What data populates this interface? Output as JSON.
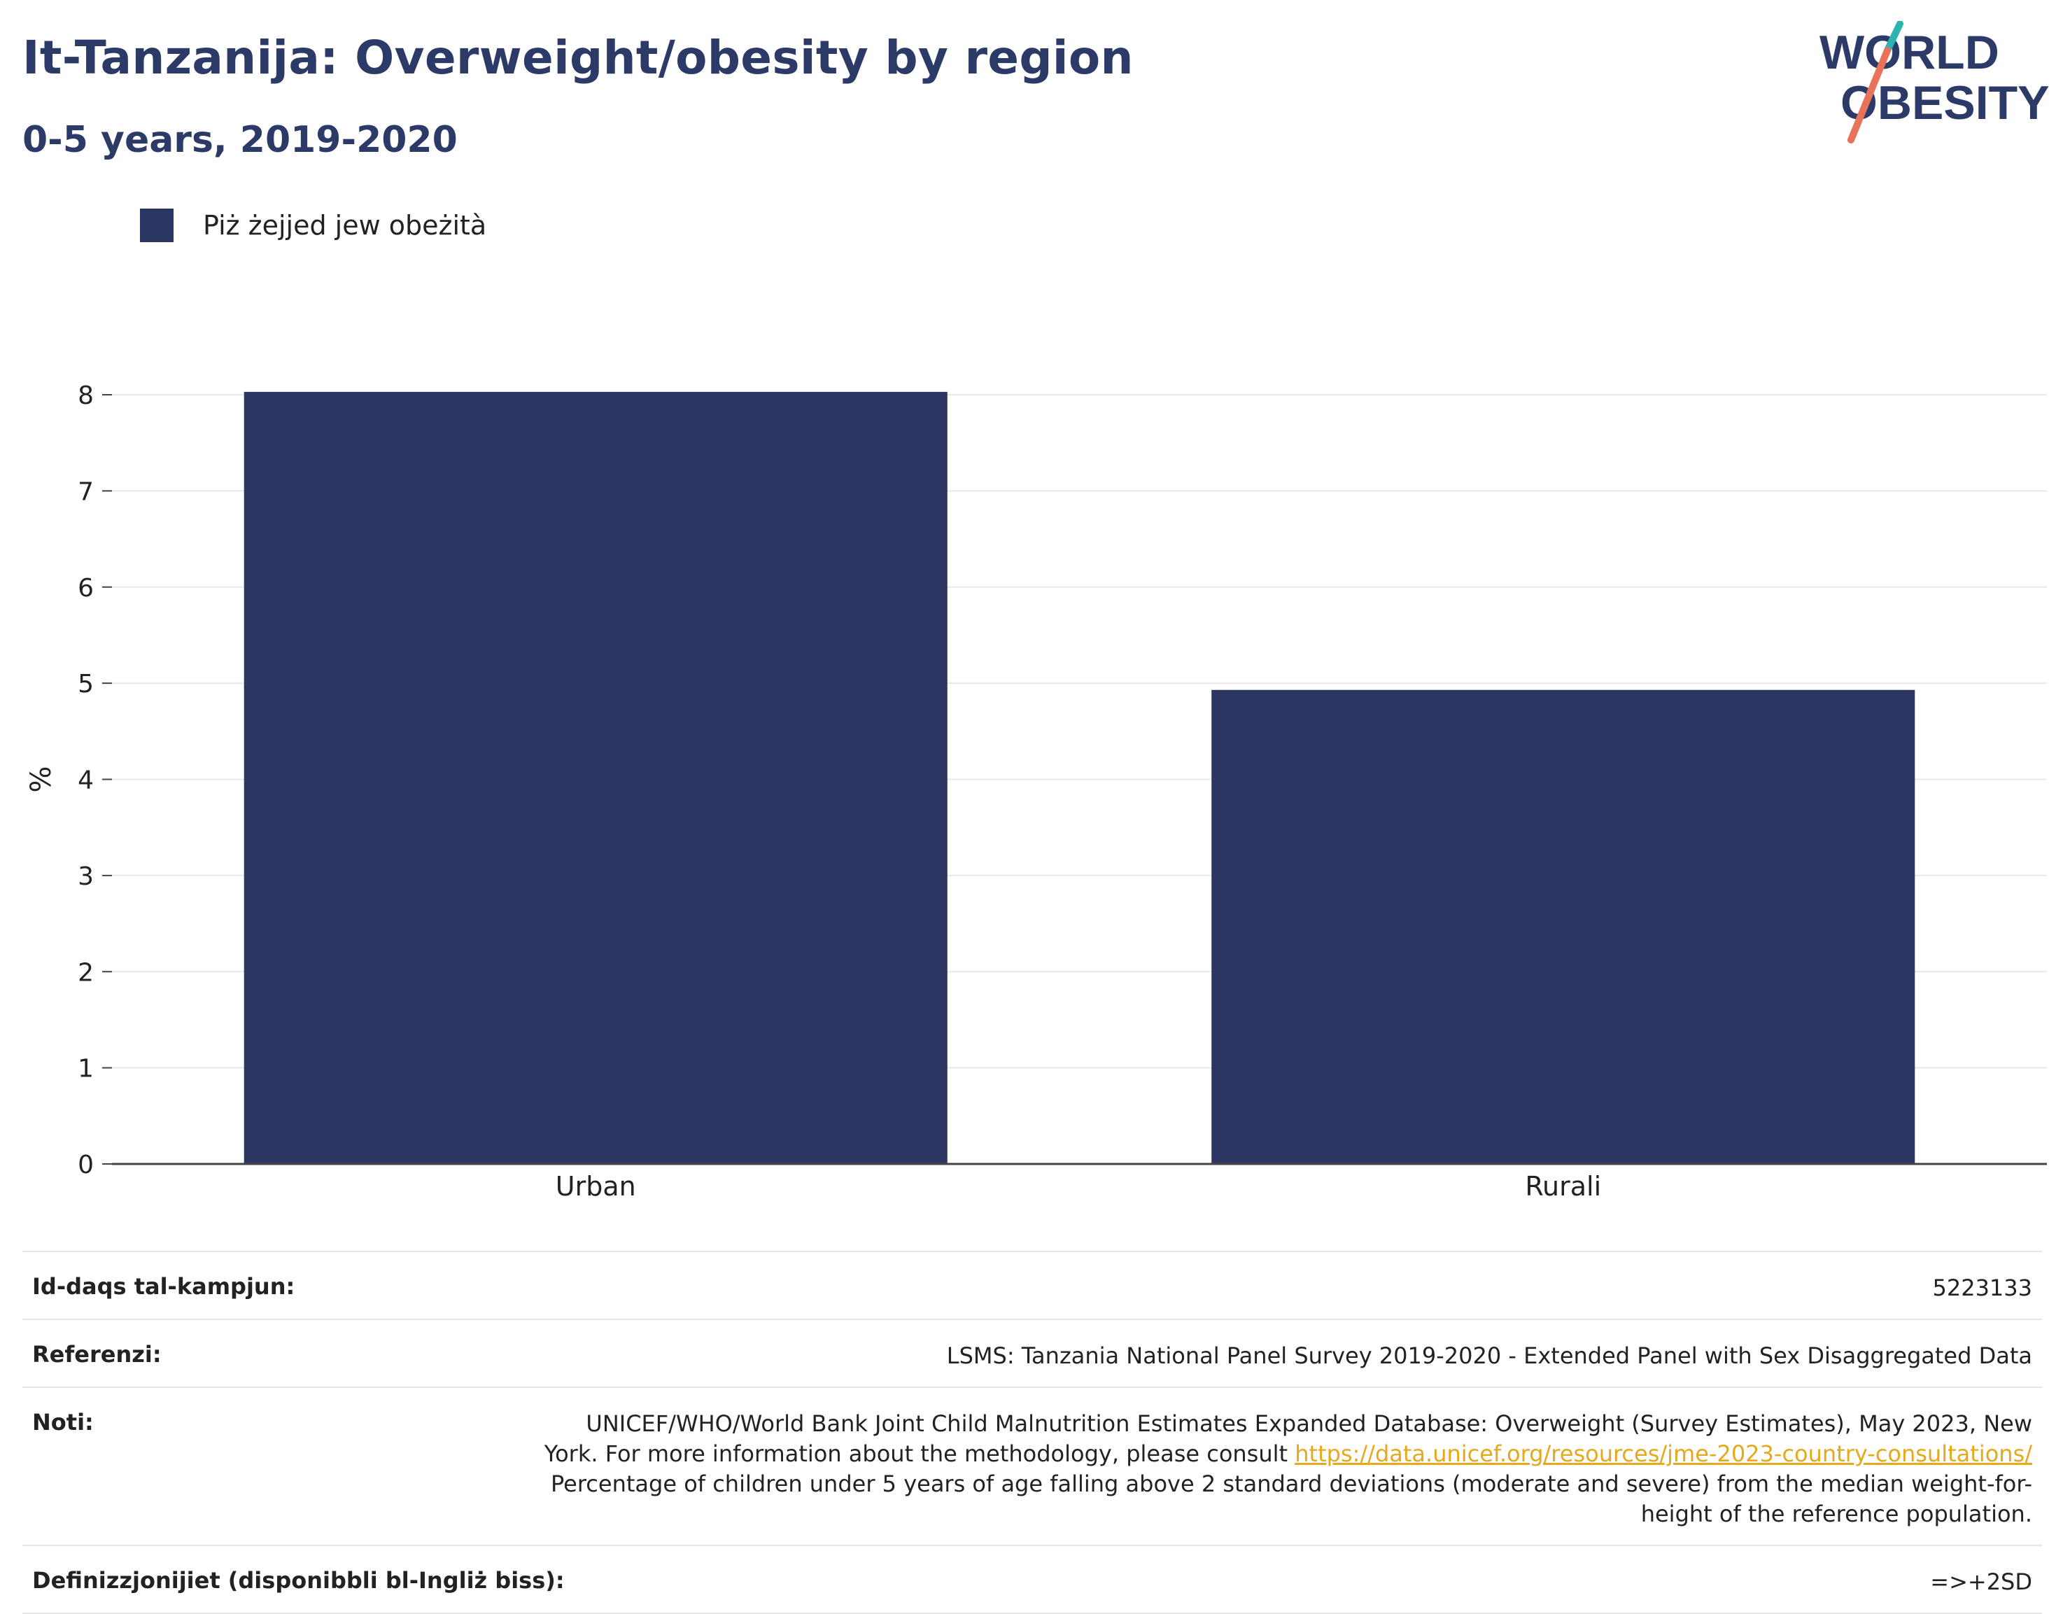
{
  "header": {
    "title": "It-Tanzanija: Overweight/obesity by region",
    "subtitle": "0-5 years, 2019-2020"
  },
  "logo": {
    "line1": "WORLD",
    "line2": "OBESITY",
    "colors": {
      "text": "#2b3a67",
      "slash_top": "#2bb3b1",
      "slash_bottom": "#e8735a"
    }
  },
  "chart_data": {
    "type": "bar",
    "categories": [
      "Urban",
      "Rurali"
    ],
    "series": [
      {
        "name": "Piż żejjed jew obeżità",
        "values": [
          8.03,
          4.93
        ],
        "color": "#2b3663"
      }
    ],
    "ylabel": "%",
    "xlabel": "",
    "ylim": [
      0,
      8
    ],
    "yticks": [
      0,
      1,
      2,
      3,
      4,
      5,
      6,
      7,
      8
    ],
    "grid": true,
    "legend_position": "top-left"
  },
  "info": {
    "sample_size": {
      "label": "Id-daqs tal-kampjun:",
      "value": "5223133"
    },
    "references": {
      "label": "Referenzi:",
      "value": "LSMS: Tanzania National Panel Survey 2019-2020 - Extended Panel with Sex Disaggregated Data"
    },
    "notes": {
      "label": "Noti:",
      "text_before": "UNICEF/WHO/World Bank Joint Child Malnutrition Estimates Expanded Database: Overweight (Survey Estimates), May 2023, New York. For more information about the methodology, please consult",
      "link": "https://data.unicef.org/resources/jme-2023-country-consultations/",
      "text_after": "Percentage of children under 5 years of age falling above 2 standard deviations (moderate and severe) from the median weight-for-height of the reference population."
    },
    "definitions": {
      "label": "Definizzjonijiet (disponibbli bl-Ingliż biss):",
      "value": "=>+2SD"
    }
  }
}
